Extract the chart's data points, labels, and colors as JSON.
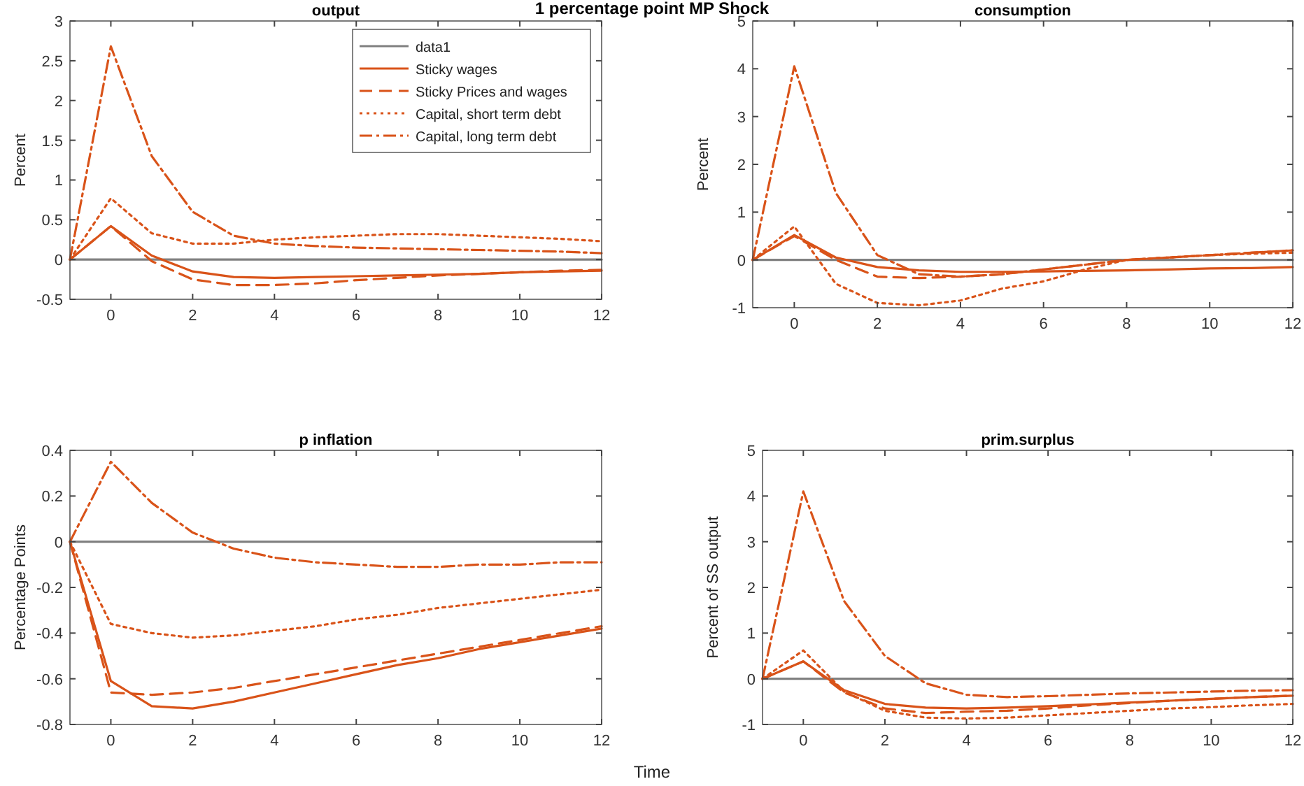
{
  "chart_data": [
    {
      "type": "line",
      "title": "output",
      "ylabel": "Percent",
      "annotations": [
        "1 percentage point MP Shock"
      ],
      "x": [
        -1,
        0,
        1,
        2,
        3,
        4,
        5,
        6,
        7,
        8,
        9,
        10,
        11,
        12
      ],
      "xlim": [
        -1,
        12
      ],
      "xticks": [
        0,
        2,
        4,
        6,
        8,
        10,
        12
      ],
      "ylim": [
        -0.5,
        3
      ],
      "yticks": [
        -0.5,
        0,
        0.5,
        1,
        1.5,
        2,
        2.5,
        3
      ],
      "legend": "top right",
      "series": [
        {
          "name": "data1",
          "color": "#808080",
          "line_style": "solid",
          "values": [
            0,
            0,
            0,
            0,
            0,
            0,
            0,
            0,
            0,
            0,
            0,
            0,
            0,
            0
          ]
        },
        {
          "name": "Sticky wages",
          "color": "#d95319",
          "line_style": "solid",
          "values": [
            0,
            0.42,
            0.05,
            -0.15,
            -0.22,
            -0.23,
            -0.22,
            -0.21,
            -0.2,
            -0.19,
            -0.18,
            -0.16,
            -0.15,
            -0.14
          ]
        },
        {
          "name": "Sticky Prices and wages",
          "color": "#d95319",
          "line_style": "dashed",
          "values": [
            0,
            0.42,
            -0.02,
            -0.25,
            -0.32,
            -0.32,
            -0.3,
            -0.26,
            -0.23,
            -0.2,
            -0.18,
            -0.16,
            -0.14,
            -0.13
          ]
        },
        {
          "name": "Capital, short term debt",
          "color": "#d95319",
          "line_style": "dotted",
          "values": [
            0,
            0.77,
            0.33,
            0.2,
            0.2,
            0.25,
            0.28,
            0.3,
            0.32,
            0.32,
            0.3,
            0.28,
            0.26,
            0.23
          ]
        },
        {
          "name": "Capital, long term debt",
          "color": "#d95319",
          "line_style": "dashdot",
          "values": [
            0,
            2.68,
            1.3,
            0.6,
            0.3,
            0.2,
            0.17,
            0.15,
            0.14,
            0.13,
            0.12,
            0.11,
            0.1,
            0.08
          ]
        }
      ]
    },
    {
      "type": "line",
      "title": "consumption",
      "ylabel": "Percent",
      "x": [
        -1,
        0,
        1,
        2,
        3,
        4,
        5,
        6,
        7,
        8,
        9,
        10,
        11,
        12
      ],
      "xlim": [
        -1,
        12
      ],
      "xticks": [
        0,
        2,
        4,
        6,
        8,
        10,
        12
      ],
      "ylim": [
        -1,
        5
      ],
      "yticks": [
        -1,
        0,
        1,
        2,
        3,
        4,
        5
      ],
      "series": [
        {
          "color": "#808080",
          "line_style": "solid",
          "values": [
            0,
            0,
            0,
            0,
            0,
            0,
            0,
            0,
            0,
            0,
            0,
            0,
            0,
            0
          ]
        },
        {
          "color": "#d95319",
          "line_style": "solid",
          "values": [
            0,
            0.52,
            0.05,
            -0.15,
            -0.22,
            -0.25,
            -0.25,
            -0.24,
            -0.23,
            -0.22,
            -0.2,
            -0.18,
            -0.17,
            -0.15
          ]
        },
        {
          "color": "#d95319",
          "line_style": "dashed",
          "values": [
            0,
            0.5,
            0,
            -0.35,
            -0.38,
            -0.35,
            -0.3,
            -0.2,
            -0.1,
            0,
            0.05,
            0.1,
            0.15,
            0.2
          ]
        },
        {
          "color": "#d95319",
          "line_style": "dotted",
          "values": [
            0,
            0.7,
            -0.5,
            -0.9,
            -0.95,
            -0.85,
            -0.6,
            -0.45,
            -0.2,
            0,
            0.05,
            0.1,
            0.13,
            0.15
          ]
        },
        {
          "color": "#d95319",
          "line_style": "dashdot",
          "values": [
            0,
            4.05,
            1.4,
            0.1,
            -0.3,
            -0.35,
            -0.3,
            -0.2,
            -0.1,
            0,
            0.05,
            0.1,
            0.15,
            0.2
          ]
        }
      ]
    },
    {
      "type": "line",
      "title": "p inflation",
      "ylabel": "Percentage Points",
      "xlabel": "Time",
      "x": [
        -1,
        0,
        1,
        2,
        3,
        4,
        5,
        6,
        7,
        8,
        9,
        10,
        11,
        12
      ],
      "xlim": [
        -1,
        12
      ],
      "xticks": [
        0,
        2,
        4,
        6,
        8,
        10,
        12
      ],
      "ylim": [
        -0.8,
        0.4
      ],
      "yticks": [
        -0.8,
        -0.6,
        -0.4,
        -0.2,
        0,
        0.2,
        0.4
      ],
      "series": [
        {
          "color": "#808080",
          "line_style": "solid",
          "values": [
            0,
            0,
            0,
            0,
            0,
            0,
            0,
            0,
            0,
            0,
            0,
            0,
            0,
            0
          ]
        },
        {
          "color": "#d95319",
          "line_style": "solid",
          "values": [
            0,
            -0.61,
            -0.72,
            -0.73,
            -0.7,
            -0.66,
            -0.62,
            -0.58,
            -0.54,
            -0.51,
            -0.47,
            -0.44,
            -0.41,
            -0.38
          ]
        },
        {
          "color": "#d95319",
          "line_style": "dashed",
          "values": [
            0,
            -0.66,
            -0.67,
            -0.66,
            -0.64,
            -0.61,
            -0.58,
            -0.55,
            -0.52,
            -0.49,
            -0.46,
            -0.43,
            -0.4,
            -0.37
          ]
        },
        {
          "color": "#d95319",
          "line_style": "dotted",
          "values": [
            0,
            -0.36,
            -0.4,
            -0.42,
            -0.41,
            -0.39,
            -0.37,
            -0.34,
            -0.32,
            -0.29,
            -0.27,
            -0.25,
            -0.23,
            -0.21
          ]
        },
        {
          "color": "#d95319",
          "line_style": "dashdot",
          "values": [
            0,
            0.35,
            0.17,
            0.04,
            -0.03,
            -0.07,
            -0.09,
            -0.1,
            -0.11,
            -0.11,
            -0.1,
            -0.1,
            -0.09,
            -0.09
          ]
        }
      ]
    },
    {
      "type": "line",
      "title": "prim.surplus",
      "ylabel": "Percent of SS output",
      "x": [
        -1,
        0,
        1,
        2,
        3,
        4,
        5,
        6,
        7,
        8,
        9,
        10,
        11,
        12
      ],
      "xlim": [
        -1,
        12
      ],
      "xticks": [
        0,
        2,
        4,
        6,
        8,
        10,
        12
      ],
      "ylim": [
        -1,
        5
      ],
      "yticks": [
        -1,
        0,
        1,
        2,
        3,
        4,
        5
      ],
      "series": [
        {
          "color": "#808080",
          "line_style": "solid",
          "values": [
            0,
            0,
            0,
            0,
            0,
            0,
            0,
            0,
            0,
            0,
            0,
            0,
            0,
            0
          ]
        },
        {
          "color": "#d95319",
          "line_style": "solid",
          "values": [
            0,
            0.38,
            -0.25,
            -0.55,
            -0.63,
            -0.65,
            -0.63,
            -0.6,
            -0.56,
            -0.52,
            -0.48,
            -0.44,
            -0.4,
            -0.37
          ]
        },
        {
          "color": "#d95319",
          "line_style": "dashed",
          "values": [
            0,
            0.38,
            -0.3,
            -0.65,
            -0.75,
            -0.72,
            -0.7,
            -0.65,
            -0.58,
            -0.53,
            -0.48,
            -0.44,
            -0.4,
            -0.37
          ]
        },
        {
          "color": "#d95319",
          "line_style": "dotted",
          "values": [
            0,
            0.62,
            -0.28,
            -0.7,
            -0.85,
            -0.87,
            -0.85,
            -0.8,
            -0.75,
            -0.7,
            -0.65,
            -0.62,
            -0.58,
            -0.55
          ]
        },
        {
          "color": "#d95319",
          "line_style": "dashdot",
          "values": [
            0,
            4.1,
            1.7,
            0.5,
            -0.1,
            -0.35,
            -0.4,
            -0.38,
            -0.35,
            -0.32,
            -0.3,
            -0.28,
            -0.26,
            -0.25
          ]
        }
      ]
    }
  ]
}
